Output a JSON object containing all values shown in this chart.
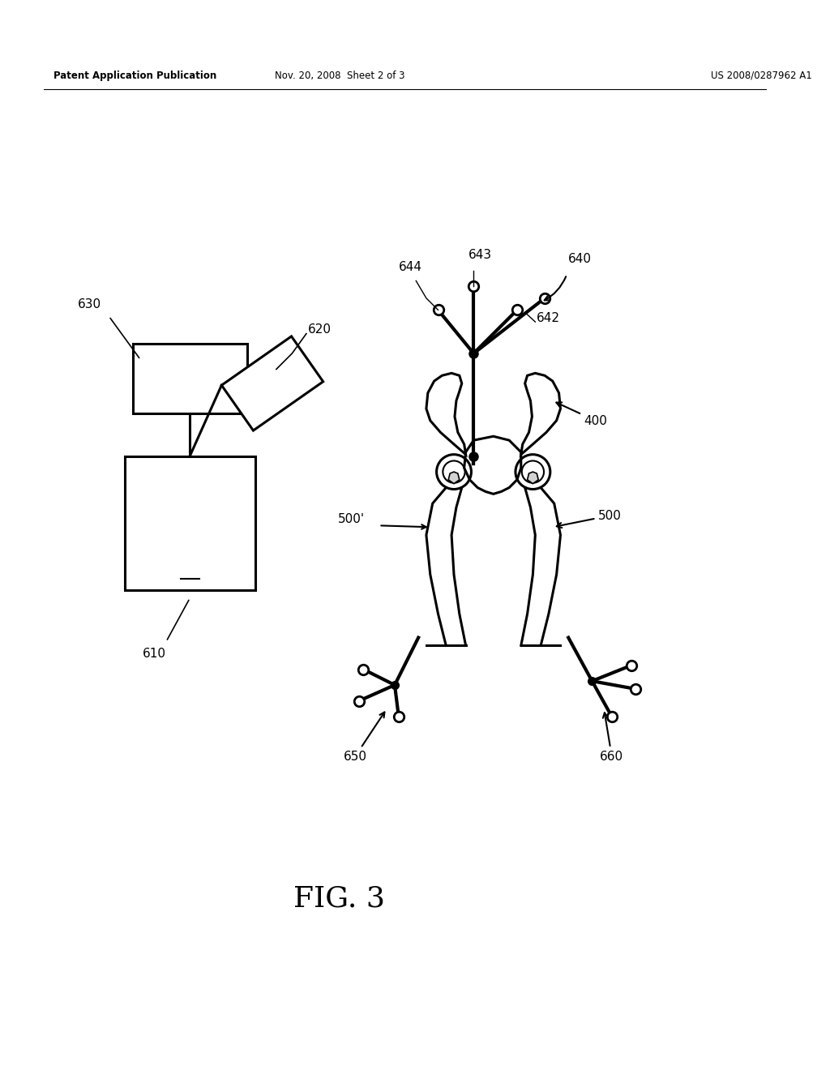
{
  "bg_color": "#ffffff",
  "header_left": "Patent Application Publication",
  "header_center": "Nov. 20, 2008  Sheet 2 of 3",
  "header_right": "US 2008/0287962 A1",
  "fig_label": "FIG. 3"
}
